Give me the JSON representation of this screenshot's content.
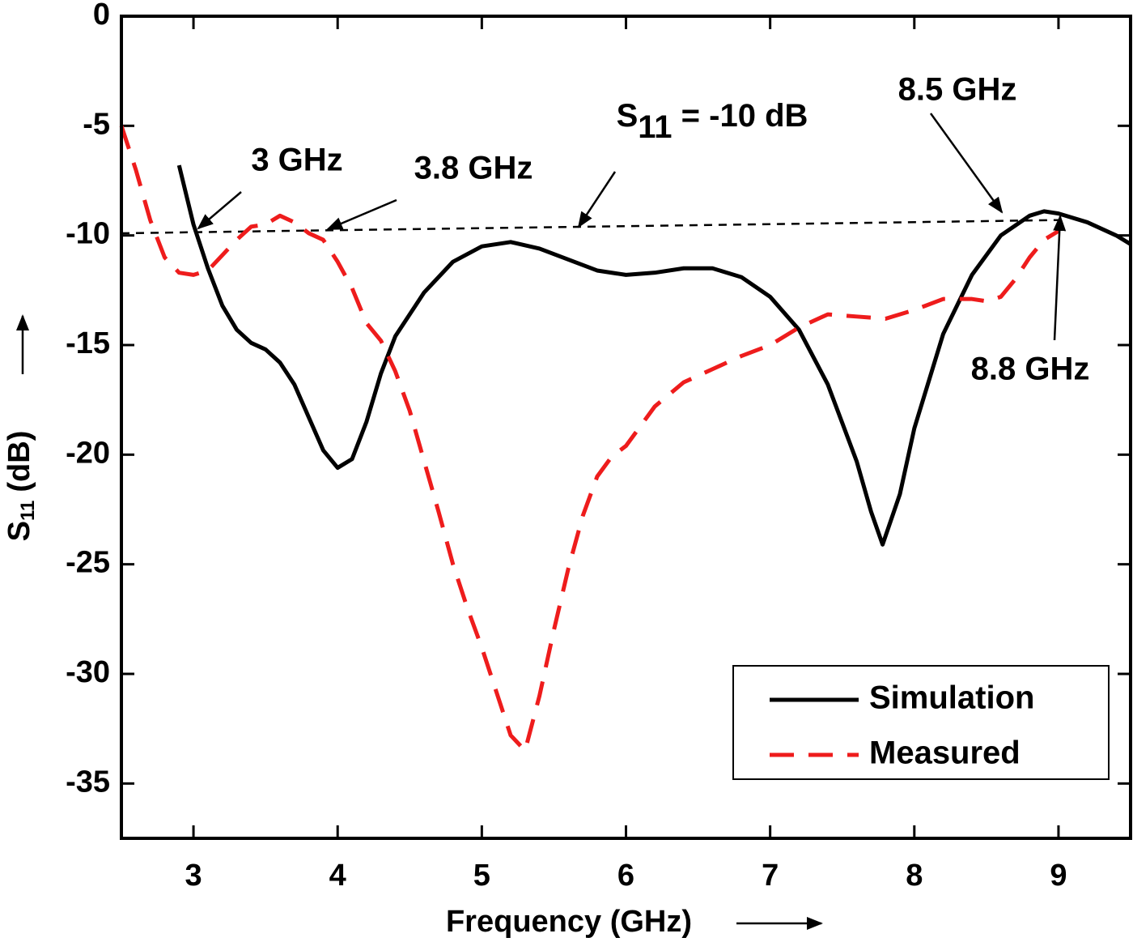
{
  "chart_data": {
    "type": "line",
    "xlabel": "Frequency (GHz)",
    "ylabel": {
      "main": "S",
      "sub": "11",
      "unit": "(dB)"
    },
    "xlim": [
      2.5,
      9.5
    ],
    "xticks": [
      3,
      4,
      5,
      6,
      7,
      8,
      9
    ],
    "ylim": [
      -37.5,
      0
    ],
    "yticks": [
      0,
      -5,
      -10,
      -15,
      -20,
      -25,
      -30,
      -35
    ],
    "legend": "bottom-right",
    "series": [
      {
        "name": "Simulation",
        "color": "#000000",
        "dash": false,
        "x": [
          2.9,
          3.0,
          3.1,
          3.2,
          3.3,
          3.4,
          3.5,
          3.6,
          3.7,
          3.8,
          3.9,
          4.0,
          4.1,
          4.2,
          4.3,
          4.4,
          4.6,
          4.8,
          5.0,
          5.2,
          5.4,
          5.6,
          5.8,
          6.0,
          6.2,
          6.4,
          6.6,
          6.8,
          7.0,
          7.2,
          7.4,
          7.6,
          7.7,
          7.78,
          7.9,
          8.0,
          8.2,
          8.4,
          8.6,
          8.8,
          8.9,
          9.0,
          9.2,
          9.4,
          9.5
        ],
        "values": [
          -6.8,
          -9.5,
          -11.5,
          -13.2,
          -14.3,
          -14.9,
          -15.2,
          -15.8,
          -16.8,
          -18.3,
          -19.8,
          -20.6,
          -20.2,
          -18.5,
          -16.3,
          -14.6,
          -12.6,
          -11.2,
          -10.5,
          -10.3,
          -10.6,
          -11.1,
          -11.6,
          -11.8,
          -11.7,
          -11.5,
          -11.5,
          -11.9,
          -12.8,
          -14.3,
          -16.8,
          -20.3,
          -22.6,
          -24.1,
          -21.8,
          -18.8,
          -14.5,
          -11.8,
          -10.0,
          -9.1,
          -8.9,
          -9.0,
          -9.4,
          -10.0,
          -10.4
        ]
      },
      {
        "name": "Measured",
        "color": "#ee1c1c",
        "dash": true,
        "x": [
          2.5,
          2.6,
          2.7,
          2.8,
          2.9,
          3.0,
          3.1,
          3.2,
          3.3,
          3.4,
          3.5,
          3.6,
          3.7,
          3.8,
          3.9,
          4.0,
          4.1,
          4.2,
          4.3,
          4.4,
          4.5,
          4.6,
          4.7,
          4.8,
          4.9,
          5.0,
          5.1,
          5.2,
          5.3,
          5.4,
          5.5,
          5.6,
          5.7,
          5.8,
          5.9,
          6.0,
          6.2,
          6.4,
          6.6,
          6.8,
          7.0,
          7.2,
          7.4,
          7.6,
          7.8,
          8.0,
          8.2,
          8.4,
          8.5,
          8.6,
          8.7,
          8.8,
          8.9,
          9.0
        ],
        "values": [
          -5.0,
          -7.0,
          -9.3,
          -11.0,
          -11.7,
          -11.8,
          -11.6,
          -10.9,
          -10.2,
          -9.6,
          -9.5,
          -9.1,
          -9.4,
          -9.9,
          -10.2,
          -11.2,
          -12.4,
          -14.0,
          -14.8,
          -16.2,
          -18.0,
          -20.3,
          -22.6,
          -25.0,
          -27.0,
          -28.8,
          -30.8,
          -32.8,
          -33.5,
          -31.0,
          -28.0,
          -25.2,
          -22.8,
          -21.0,
          -20.1,
          -19.6,
          -17.8,
          -16.7,
          -16.1,
          -15.5,
          -15.0,
          -14.2,
          -13.6,
          -13.7,
          -13.8,
          -13.4,
          -12.9,
          -12.9,
          -13.0,
          -12.8,
          -12.0,
          -11.0,
          -10.2,
          -9.8
        ]
      }
    ],
    "reference_line": {
      "x": [
        2.5,
        9.0
      ],
      "values": [
        -9.9,
        -9.3
      ]
    },
    "annotations": [
      {
        "text": "3 GHz"
      },
      {
        "text": "3.8 GHz"
      },
      {
        "main": "S",
        "sub": "11",
        "rest": " = -10 dB"
      },
      {
        "text": "8.5 GHz"
      },
      {
        "text": "8.8 GHz"
      }
    ]
  }
}
